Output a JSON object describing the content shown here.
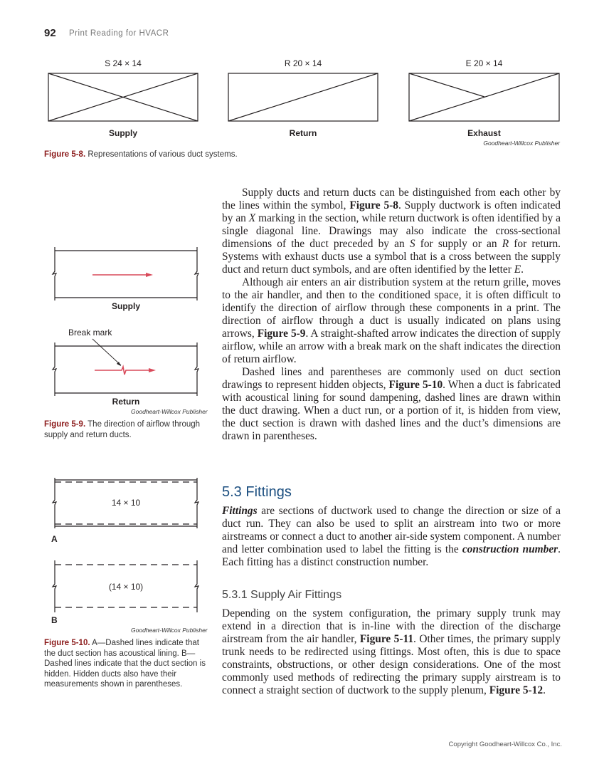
{
  "header": {
    "page_number": "92",
    "running_head": "Print Reading for HVACR"
  },
  "fig58": {
    "labels": [
      "S 24 × 14",
      "R 20 × 14",
      "E 20 × 14"
    ],
    "names": [
      "Supply",
      "Return",
      "Exhaust"
    ],
    "credit": "Goodheart-Willcox Publisher",
    "caption_num": "Figure 5-8.",
    "caption": " Representations of various duct systems."
  },
  "fig59": {
    "supply": "Supply",
    "return": "Return",
    "break_mark": "Break mark",
    "credit": "Goodheart-Willcox Publisher",
    "caption_num": "Figure 5-9.",
    "caption": " The direction of airflow through supply and return ducts.",
    "arrow_color": "#d94a5a"
  },
  "fig510": {
    "dim_a": "14 × 10",
    "dim_b": "(14 × 10)",
    "label_a": "A",
    "label_b": "B",
    "credit": "Goodheart-Willcox Publisher",
    "caption_num": "Figure 5-10.",
    "caption": " A—Dashed lines indicate that the duct section has acoustical lining. B—Dashed lines indicate that the duct section is hidden. Hidden ducts also have their measurements shown in parentheses."
  },
  "body": {
    "paragraphs1": [
      [
        [
          "Supply ducts and return ducts can be distinguished from each other by the lines within the symbol, ",
          ""
        ],
        [
          "Figure 5-8",
          "b"
        ],
        [
          ". Supply ductwork is often indicated by an ",
          ""
        ],
        [
          "X",
          "i"
        ],
        [
          " marking in the section, while return ductwork is often identified by a single diagonal line. Drawings may also indicate the cross-sectional dimensions of the duct preceded by an ",
          ""
        ],
        [
          "S",
          "i"
        ],
        [
          " for supply or an ",
          ""
        ],
        [
          "R",
          "i"
        ],
        [
          " for return. Systems with exhaust ducts use a symbol that is a cross between the supply duct and return duct symbols, and are often identified by the letter ",
          ""
        ],
        [
          "E",
          "i"
        ],
        [
          ".",
          ""
        ]
      ],
      [
        [
          "Although air enters an air distribution system at the return grille, moves to the air handler, and then to the conditioned space, it is often difficult to identify the direction of airflow through these components in a print. The direction of airflow through a duct is usually indicated on plans using arrows, ",
          ""
        ],
        [
          "Figure 5-9",
          "b"
        ],
        [
          ". A straight-shafted arrow indicates the direction of supply airflow, while an arrow with a break mark on the shaft indicates the direction of return airflow.",
          ""
        ]
      ],
      [
        [
          "Dashed lines and parentheses are commonly used on duct section drawings to represent hidden objects, ",
          ""
        ],
        [
          "Figure 5-10",
          "b"
        ],
        [
          ". When a duct is fabricated with acoustical lining for sound dampening, dashed lines are drawn within the duct drawing. When a duct run, or a portion of it, is hidden from view, the duct section is drawn with dashed lines and the duct’s dimensions are drawn in parentheses.",
          ""
        ]
      ]
    ],
    "heading": "5.3 Fittings",
    "paragraphs2": [
      [
        [
          "Fittings",
          "bi"
        ],
        [
          " are sections of ductwork used to change the direction or size of a duct run. They can also be used to split an airstream into two or more airstreams or connect a duct to another air-side system component. A number and letter combination used to label the fitting is the ",
          ""
        ],
        [
          "construction number",
          "bi"
        ],
        [
          ". Each fitting has a distinct construction number.",
          ""
        ]
      ]
    ],
    "subheading": "5.3.1 Supply Air Fittings",
    "paragraphs3": [
      [
        [
          "Depending on the system configuration, the primary supply trunk may extend in a direction that is in-line with the direction of the discharge airstream from the air handler, ",
          ""
        ],
        [
          "Figure 5-11",
          "b"
        ],
        [
          ". Other times, the primary supply trunk needs to be redirected using fittings. Most often, this is due to space constraints, obstructions, or other design considerations. One of the most commonly used methods of redirecting the primary supply airstream is to connect a straight section of ductwork to the supply plenum, ",
          ""
        ],
        [
          "Figure 5-12",
          "b"
        ],
        [
          ".",
          ""
        ]
      ]
    ]
  },
  "footer": {
    "copyright": "Copyright Goodheart-Willcox Co., Inc."
  }
}
